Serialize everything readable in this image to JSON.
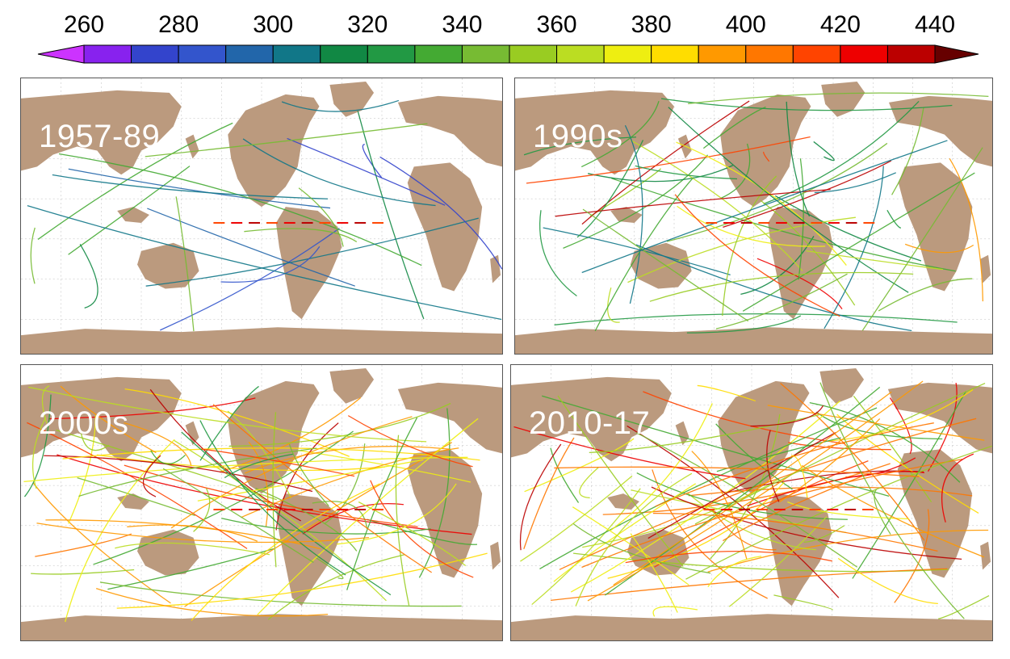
{
  "colorbar": {
    "ticks": [
      "260",
      "280",
      "300",
      "320",
      "340",
      "360",
      "380",
      "400",
      "420",
      "440"
    ],
    "min": 260,
    "max": 440,
    "step": 10,
    "colors": [
      "#cc33ff",
      "#8822ee",
      "#3344cc",
      "#3355cc",
      "#2266aa",
      "#117788",
      "#118844",
      "#229944",
      "#44aa33",
      "#77bb33",
      "#99cc22",
      "#bbdd22",
      "#eeee11",
      "#ffdd00",
      "#ff9900",
      "#ff7700",
      "#ff4400",
      "#ee0000",
      "#bb0000",
      "#660000"
    ]
  },
  "panels": [
    {
      "id": "p1957",
      "label": "1957-89",
      "density": 22,
      "warm": 0.05,
      "pal": [
        4,
        5,
        6,
        7,
        8,
        9,
        2,
        3
      ]
    },
    {
      "id": "p1990",
      "label": "1990s",
      "density": 55,
      "warm": 0.18,
      "pal": [
        6,
        7,
        8,
        9,
        10,
        11,
        12,
        5
      ]
    },
    {
      "id": "p2000",
      "label": "2000s",
      "density": 75,
      "warm": 0.28,
      "pal": [
        8,
        9,
        10,
        11,
        12,
        13,
        7,
        14
      ]
    },
    {
      "id": "p2010",
      "label": "2010-17",
      "density": 85,
      "warm": 0.38,
      "pal": [
        9,
        10,
        11,
        12,
        13,
        14,
        15,
        8
      ]
    }
  ],
  "colors": {
    "land": "#bb9a7e",
    "ocean": "#ffffff",
    "grid": "#bbbbbb"
  }
}
